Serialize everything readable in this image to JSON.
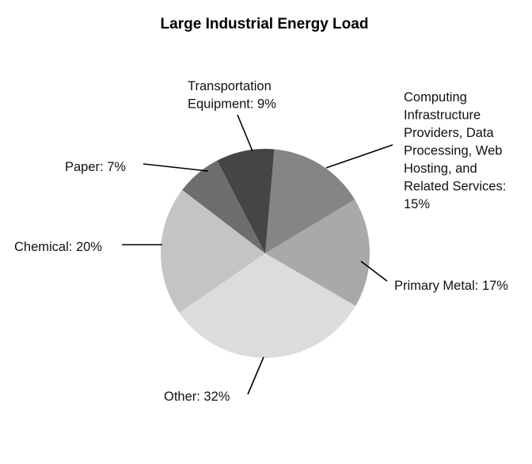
{
  "chart_data": {
    "type": "pie",
    "title": "Large Industrial Energy Load",
    "start_angle_deg": 5,
    "direction": "clockwise",
    "slices": [
      {
        "label": "Computing Infrastructure Providers, Data Processing, Web Hosting, and Related Services",
        "value": 15,
        "display": [
          "Computing",
          "Infrastructure",
          "Providers, Data",
          "Processing, Web",
          "Hosting, and",
          "Related Services:",
          "15%"
        ],
        "color": "#858585"
      },
      {
        "label": "Primary Metal",
        "value": 17,
        "display": [
          "Primary Metal: 17%"
        ],
        "color": "#a9a9a9"
      },
      {
        "label": "Other",
        "value": 32,
        "display": [
          "Other: 32%"
        ],
        "color": "#dcdcdc"
      },
      {
        "label": "Chemical",
        "value": 20,
        "display": [
          "Chemical: 20%"
        ],
        "color": "#c4c4c4"
      },
      {
        "label": "Paper",
        "value": 7,
        "display": [
          "Paper: 7%"
        ],
        "color": "#6e6e6e"
      },
      {
        "label": "Transportation Equipment",
        "value": 9,
        "display": [
          "Transportation",
          "Equipment: 9%"
        ],
        "color": "#454545"
      }
    ],
    "legend": "none",
    "grid": false
  }
}
